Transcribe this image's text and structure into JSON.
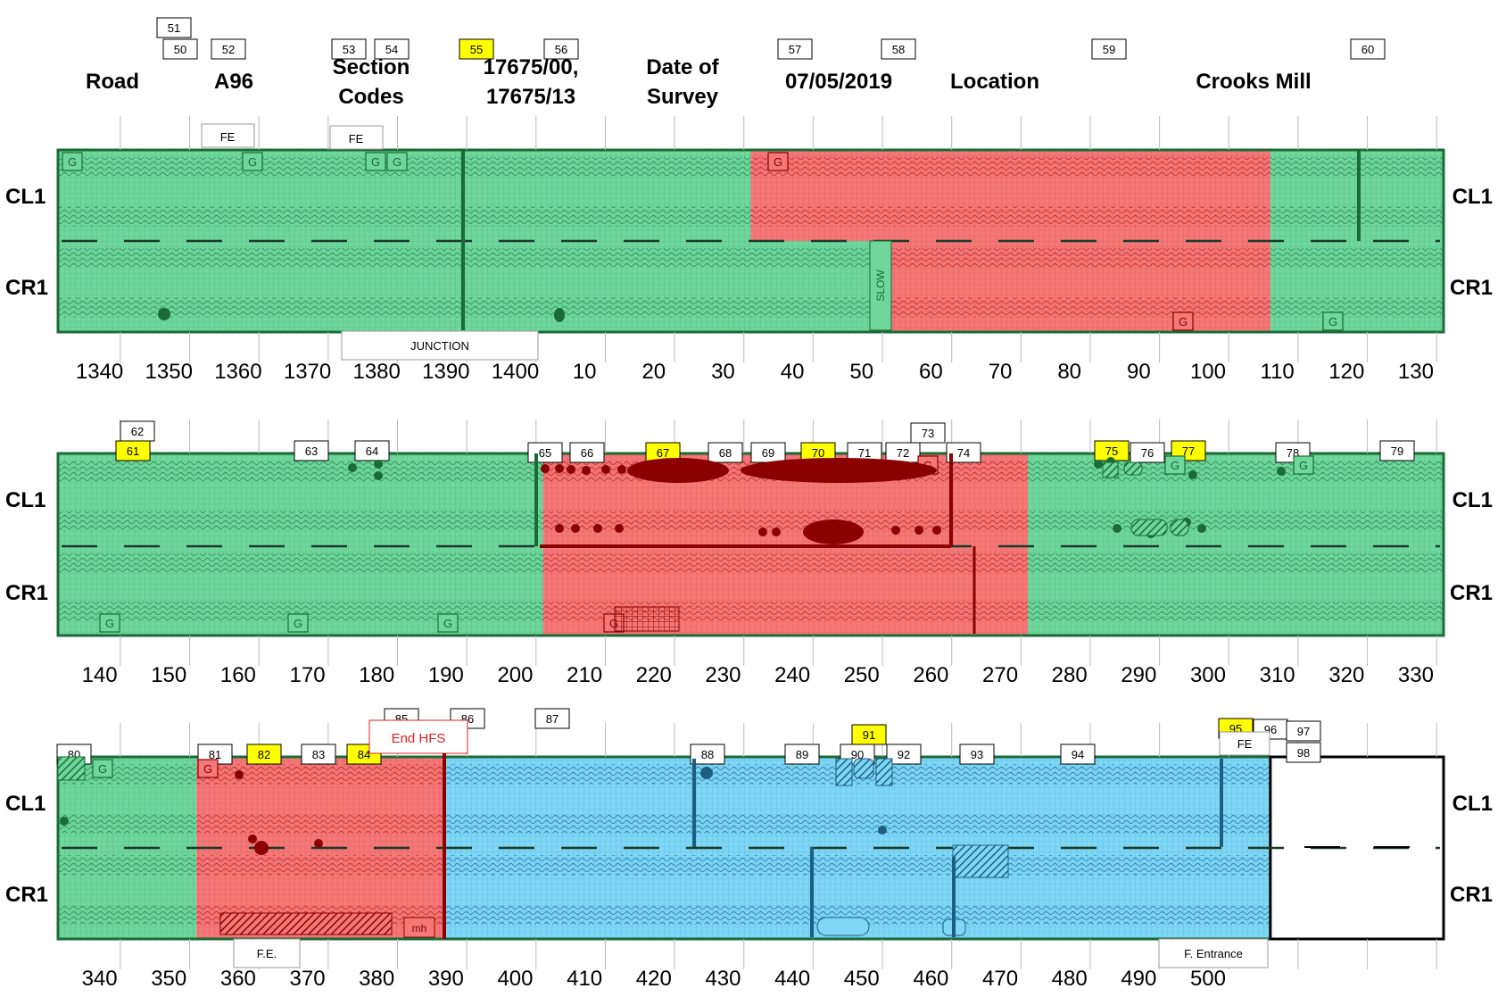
{
  "header": {
    "road_label": "Road",
    "road_value": "A96",
    "section_codes_label_line1": "Section",
    "section_codes_label_line2": "Codes",
    "section_codes_value_line1": "17675/00,",
    "section_codes_value_line2": "17675/13",
    "date_label_line1": "Date of",
    "date_label_line2": "Survey",
    "date_value": "07/05/2019",
    "location_label": "Location",
    "location_value": "Crooks Mill"
  },
  "lane_labels": {
    "left": "CL1",
    "right": "CR1"
  },
  "colors": {
    "green": "#6fd69c",
    "red": "#f47878",
    "blue": "#7fd6f5",
    "dark_green": "#1a6b35",
    "dark_red": "#8b0000",
    "dark_blue": "#1c5f80",
    "callout_yellow": "#ffff00"
  },
  "strips": [
    {
      "id": "strip-1",
      "axis_ticks": [
        "1340",
        "1350",
        "1360",
        "1370",
        "1380",
        "1390",
        "1400",
        "10",
        "20",
        "30",
        "40",
        "50",
        "60",
        "70",
        "80",
        "90",
        "100",
        "110",
        "120",
        "130"
      ],
      "segments": [
        {
          "lane": "CL1",
          "color": "green",
          "from": 0,
          "to": 10
        },
        {
          "lane": "CL1",
          "color": "red",
          "from": 10,
          "to": 17.5
        },
        {
          "lane": "CL1",
          "color": "green",
          "from": 17.5,
          "to": 20
        },
        {
          "lane": "CR1",
          "color": "green",
          "from": 0,
          "to": 12
        },
        {
          "lane": "CR1",
          "color": "red",
          "from": 12,
          "to": 17.5
        },
        {
          "lane": "CR1",
          "color": "green",
          "from": 17.5,
          "to": 20
        }
      ],
      "callouts": [
        {
          "label": "50",
          "highlight": false
        },
        {
          "label": "51",
          "highlight": false
        },
        {
          "label": "52",
          "highlight": false
        },
        {
          "label": "53",
          "highlight": false
        },
        {
          "label": "54",
          "highlight": false
        },
        {
          "label": "55",
          "highlight": true
        },
        {
          "label": "56",
          "highlight": false
        },
        {
          "label": "57",
          "highlight": false
        },
        {
          "label": "58",
          "highlight": false
        },
        {
          "label": "59",
          "highlight": false
        },
        {
          "label": "60",
          "highlight": false
        }
      ],
      "annotations": [
        "FE",
        "FE",
        "JUNCTION",
        "SLOW"
      ]
    },
    {
      "id": "strip-2",
      "axis_ticks": [
        "140",
        "150",
        "160",
        "170",
        "180",
        "190",
        "200",
        "210",
        "220",
        "230",
        "240",
        "250",
        "260",
        "270",
        "280",
        "290",
        "300",
        "310",
        "320",
        "330"
      ],
      "segments": [
        {
          "lane": "CL1",
          "color": "green",
          "from": 0,
          "to": 7
        },
        {
          "lane": "CL1",
          "color": "red",
          "from": 7,
          "to": 14
        },
        {
          "lane": "CL1",
          "color": "green",
          "from": 14,
          "to": 20
        },
        {
          "lane": "CR1",
          "color": "green",
          "from": 0,
          "to": 7
        },
        {
          "lane": "CR1",
          "color": "red",
          "from": 7,
          "to": 14
        },
        {
          "lane": "CR1",
          "color": "green",
          "from": 14,
          "to": 20
        }
      ],
      "callouts": [
        {
          "label": "61",
          "highlight": true
        },
        {
          "label": "62",
          "highlight": false
        },
        {
          "label": "63",
          "highlight": false
        },
        {
          "label": "64",
          "highlight": false
        },
        {
          "label": "65",
          "highlight": false
        },
        {
          "label": "66",
          "highlight": false
        },
        {
          "label": "67",
          "highlight": true
        },
        {
          "label": "68",
          "highlight": false
        },
        {
          "label": "69",
          "highlight": false
        },
        {
          "label": "70",
          "highlight": true
        },
        {
          "label": "71",
          "highlight": false
        },
        {
          "label": "72",
          "highlight": false
        },
        {
          "label": "73",
          "highlight": false
        },
        {
          "label": "74",
          "highlight": false
        },
        {
          "label": "75",
          "highlight": true
        },
        {
          "label": "76",
          "highlight": false
        },
        {
          "label": "77",
          "highlight": true
        },
        {
          "label": "78",
          "highlight": false
        },
        {
          "label": "79",
          "highlight": false
        }
      ],
      "annotations": []
    },
    {
      "id": "strip-3",
      "axis_ticks": [
        "340",
        "350",
        "360",
        "370",
        "380",
        "390",
        "400",
        "410",
        "420",
        "430",
        "440",
        "450",
        "460",
        "470",
        "480",
        "490",
        "500"
      ],
      "segments": [
        {
          "lane": "CL1",
          "color": "green",
          "from": 0,
          "to": 2
        },
        {
          "lane": "CL1",
          "color": "red",
          "from": 2,
          "to": 5.6
        },
        {
          "lane": "CL1",
          "color": "blue",
          "from": 5.6,
          "to": 17.5
        },
        {
          "lane": "CR1",
          "color": "green",
          "from": 0,
          "to": 2
        },
        {
          "lane": "CR1",
          "color": "red",
          "from": 2,
          "to": 5.6
        },
        {
          "lane": "CR1",
          "color": "blue",
          "from": 5.6,
          "to": 17.5
        }
      ],
      "callouts": [
        {
          "label": "80",
          "highlight": false
        },
        {
          "label": "81",
          "highlight": false
        },
        {
          "label": "82",
          "highlight": true
        },
        {
          "label": "83",
          "highlight": false
        },
        {
          "label": "84",
          "highlight": true
        },
        {
          "label": "85",
          "highlight": false
        },
        {
          "label": "86",
          "highlight": false
        },
        {
          "label": "87",
          "highlight": false
        },
        {
          "label": "88",
          "highlight": false
        },
        {
          "label": "89",
          "highlight": false
        },
        {
          "label": "90",
          "highlight": false
        },
        {
          "label": "91",
          "highlight": true
        },
        {
          "label": "92",
          "highlight": false
        },
        {
          "label": "93",
          "highlight": false
        },
        {
          "label": "94",
          "highlight": false
        },
        {
          "label": "95",
          "highlight": true
        },
        {
          "label": "96",
          "highlight": false
        },
        {
          "label": "97",
          "highlight": false
        },
        {
          "label": "98",
          "highlight": false
        }
      ],
      "annotations": [
        "End HFS",
        "FE",
        "F.E.",
        "mh",
        "F. Entrance"
      ]
    }
  ],
  "marker_letter": "G"
}
